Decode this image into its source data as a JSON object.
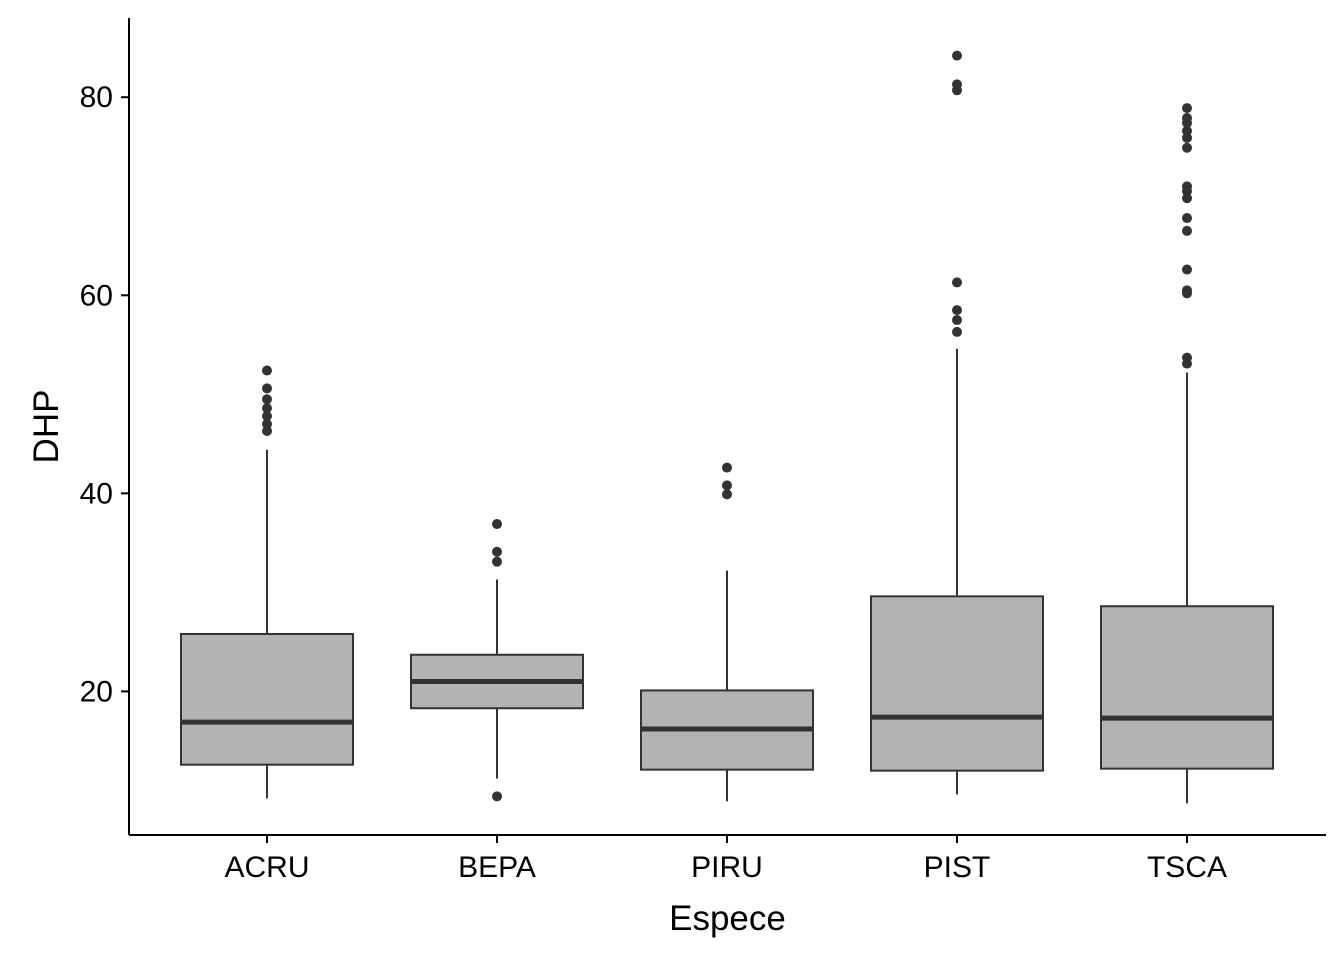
{
  "chart_data": {
    "type": "boxplot",
    "xlabel": "Espece",
    "ylabel": "DHP",
    "ylim": [
      5.5,
      88
    ],
    "yticks": [
      20,
      40,
      60,
      80
    ],
    "grid": false,
    "legend": "none",
    "colors": {
      "box_fill": "#b3b3b3",
      "box_stroke": "#333333",
      "axis": "#000000"
    },
    "categories": [
      "ACRU",
      "BEPA",
      "PIRU",
      "PIST",
      "TSCA"
    ],
    "boxes": [
      {
        "category": "ACRU",
        "whisker_low": 9.2,
        "q1": 12.6,
        "median": 16.9,
        "q3": 25.8,
        "whisker_high": 44.4,
        "outliers": [
          46.3,
          47.0,
          47.8,
          48.6,
          49.5,
          50.6,
          52.4
        ]
      },
      {
        "category": "BEPA",
        "whisker_low": 11.2,
        "q1": 18.3,
        "median": 21.0,
        "q3": 23.7,
        "whisker_high": 31.3,
        "outliers": [
          9.4,
          33.1,
          34.1,
          36.9
        ]
      },
      {
        "category": "PIRU",
        "whisker_low": 8.9,
        "q1": 12.1,
        "median": 16.2,
        "q3": 20.1,
        "whisker_high": 32.2,
        "outliers": [
          39.9,
          40.8,
          42.6
        ]
      },
      {
        "category": "PIST",
        "whisker_low": 9.6,
        "q1": 12.0,
        "median": 17.4,
        "q3": 29.6,
        "whisker_high": 54.6,
        "outliers": [
          56.3,
          57.5,
          58.5,
          61.3,
          80.7,
          81.3,
          84.2
        ]
      },
      {
        "category": "TSCA",
        "whisker_low": 8.7,
        "q1": 12.2,
        "median": 17.3,
        "q3": 28.6,
        "whisker_high": 52.2,
        "outliers": [
          53.1,
          53.7,
          60.2,
          60.5,
          62.6,
          66.5,
          67.8,
          69.8,
          70.5,
          71.0,
          74.9,
          75.9,
          76.6,
          77.4,
          77.9,
          78.9
        ]
      }
    ]
  }
}
